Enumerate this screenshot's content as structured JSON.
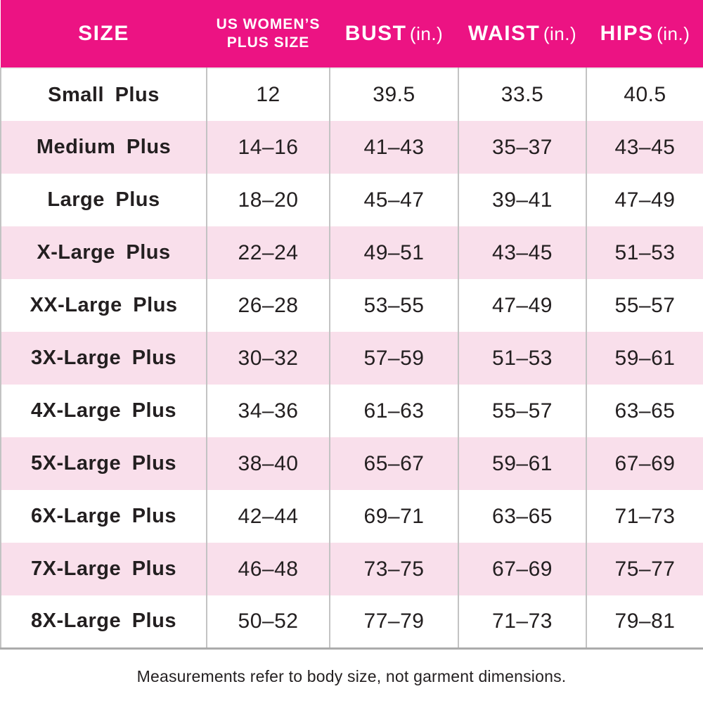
{
  "colors": {
    "header_bg": "#ec1383",
    "header_text": "#ffffff",
    "row_alt_bg": "#f9dfeb",
    "row_bg": "#ffffff",
    "text": "#231f20",
    "grid_line": "#c3c3c3",
    "bottom_border": "#ababab"
  },
  "header": {
    "size_label": "SIZE",
    "plus_line1": "US WOMEN’S",
    "plus_line2": "PLUS SIZE",
    "bust_label": "BUST",
    "bust_unit": "(in.)",
    "waist_label": "WAIST",
    "waist_unit": "(in.)",
    "hips_label": "HIPS",
    "hips_unit": "(in.)"
  },
  "rows": [
    {
      "size": "Small Plus",
      "plus": "12",
      "bust": "39.5",
      "waist": "33.5",
      "hips": "40.5"
    },
    {
      "size": "Medium Plus",
      "plus": "14–16",
      "bust": "41–43",
      "waist": "35–37",
      "hips": "43–45"
    },
    {
      "size": "Large Plus",
      "plus": "18–20",
      "bust": "45–47",
      "waist": "39–41",
      "hips": "47–49"
    },
    {
      "size": "X-Large Plus",
      "plus": "22–24",
      "bust": "49–51",
      "waist": "43–45",
      "hips": "51–53"
    },
    {
      "size": "XX-Large Plus",
      "plus": "26–28",
      "bust": "53–55",
      "waist": "47–49",
      "hips": "55–57"
    },
    {
      "size": "3X-Large Plus",
      "plus": "30–32",
      "bust": "57–59",
      "waist": "51–53",
      "hips": "59–61"
    },
    {
      "size": "4X-Large Plus",
      "plus": "34–36",
      "bust": "61–63",
      "waist": "55–57",
      "hips": "63–65"
    },
    {
      "size": "5X-Large Plus",
      "plus": "38–40",
      "bust": "65–67",
      "waist": "59–61",
      "hips": "67–69"
    },
    {
      "size": "6X-Large Plus",
      "plus": "42–44",
      "bust": "69–71",
      "waist": "63–65",
      "hips": "71–73"
    },
    {
      "size": "7X-Large Plus",
      "plus": "46–48",
      "bust": "73–75",
      "waist": "67–69",
      "hips": "75–77"
    },
    {
      "size": "8X-Large Plus",
      "plus": "50–52",
      "bust": "77–79",
      "waist": "71–73",
      "hips": "79–81"
    }
  ],
  "footnote": "Measurements refer to body size, not garment dimensions.",
  "chart_data": {
    "type": "table",
    "columns": [
      "SIZE",
      "US WOMEN’S PLUS SIZE",
      "BUST (in.)",
      "WAIST (in.)",
      "HIPS (in.)"
    ],
    "rows": [
      [
        "Small Plus",
        "12",
        "39.5",
        "33.5",
        "40.5"
      ],
      [
        "Medium Plus",
        "14–16",
        "41–43",
        "35–37",
        "43–45"
      ],
      [
        "Large Plus",
        "18–20",
        "45–47",
        "39–41",
        "47–49"
      ],
      [
        "X-Large Plus",
        "22–24",
        "49–51",
        "43–45",
        "51–53"
      ],
      [
        "XX-Large Plus",
        "26–28",
        "53–55",
        "47–49",
        "55–57"
      ],
      [
        "3X-Large Plus",
        "30–32",
        "57–59",
        "51–53",
        "59–61"
      ],
      [
        "4X-Large Plus",
        "34–36",
        "61–63",
        "55–57",
        "63–65"
      ],
      [
        "5X-Large Plus",
        "38–40",
        "65–67",
        "59–61",
        "67–69"
      ],
      [
        "6X-Large Plus",
        "42–44",
        "69–71",
        "63–65",
        "71–73"
      ],
      [
        "7X-Large Plus",
        "46–48",
        "73–75",
        "67–69",
        "75–77"
      ],
      [
        "8X-Large Plus",
        "50–52",
        "77–79",
        "71–73",
        "79–81"
      ]
    ],
    "annotations": [
      "Measurements refer to body size, not garment dimensions."
    ]
  }
}
